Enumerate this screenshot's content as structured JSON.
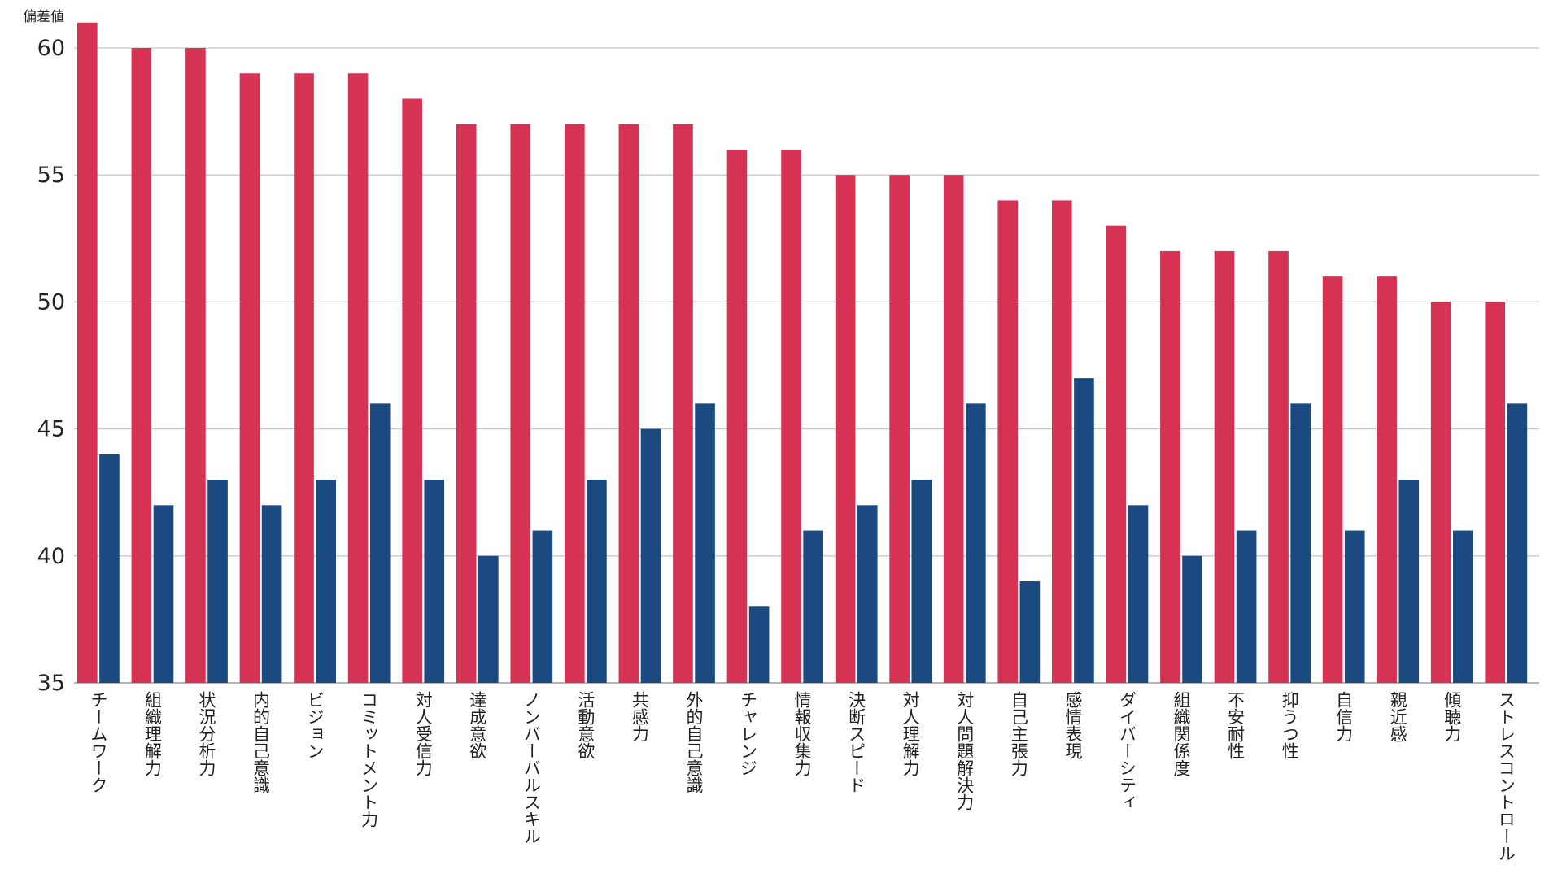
{
  "chart_data": {
    "type": "bar",
    "y_label": "偏差値",
    "categories": [
      "チームワーク",
      "組織理解力",
      "状況分析力",
      "内的自己意識",
      "ビジョン",
      "コミットメント力",
      "対人受信力",
      "達成意欲",
      "ノンバーバルスキル",
      "活動意欲",
      "共感力",
      "外的自己意識",
      "チャレンジ",
      "情報収集力",
      "決断スピード",
      "対人理解力",
      "対人問題解決力",
      "自己主張力",
      "感情表現",
      "ダイバーシティ",
      "組織関係度",
      "不安耐性",
      "抑うつ性",
      "自信力",
      "親近感",
      "傾聴力",
      "ストレスコントロール"
    ],
    "series": [
      {
        "color": "#d63254",
        "values": [
          61,
          60,
          60,
          59,
          59,
          59,
          58,
          57,
          57,
          57,
          57,
          57,
          56,
          56,
          55,
          55,
          55,
          54,
          54,
          53,
          52,
          52,
          52,
          51,
          51,
          50,
          50
        ]
      },
      {
        "color": "#1a4a80",
        "values": [
          44,
          42,
          43,
          42,
          43,
          46,
          43,
          40,
          41,
          43,
          45,
          46,
          38,
          41,
          42,
          43,
          46,
          39,
          47,
          42,
          40,
          41,
          46,
          41,
          43,
          41,
          46
        ]
      }
    ],
    "ylim": [
      35,
      61
    ],
    "yticks": [
      35,
      40,
      45,
      50,
      55,
      60
    ],
    "grid": true
  }
}
